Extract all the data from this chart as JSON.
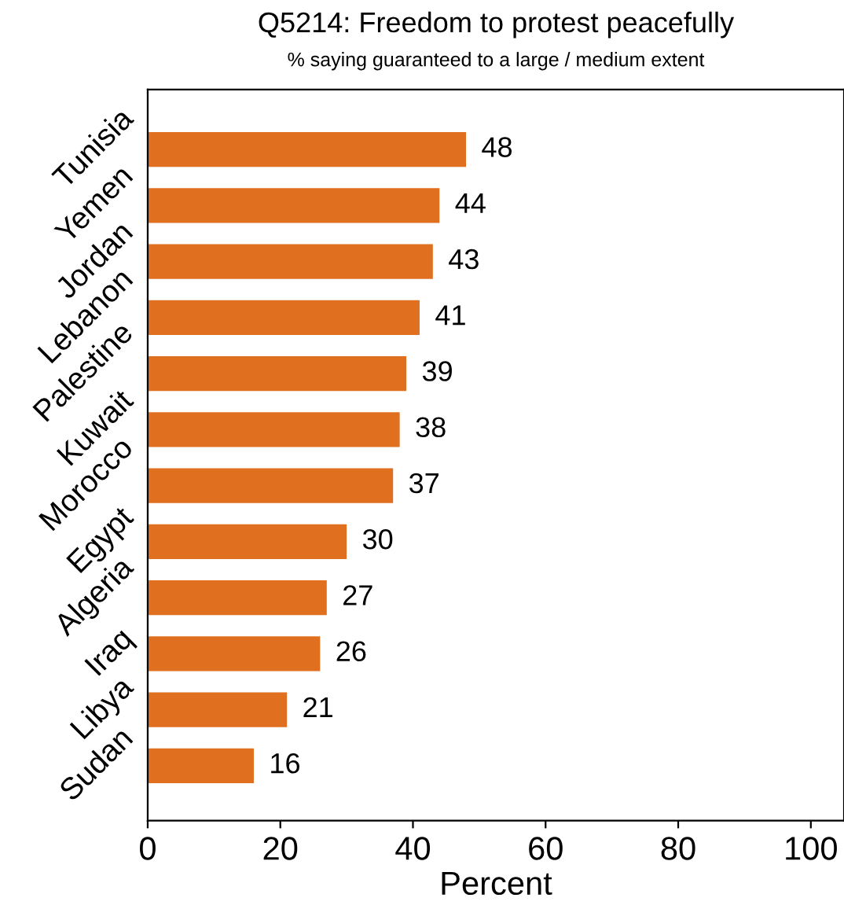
{
  "chart_data": {
    "type": "bar",
    "orientation": "horizontal",
    "title": "Q5214: Freedom to protest peacefully",
    "subtitle": "% saying guaranteed to a large / medium extent",
    "xlabel": "Percent",
    "categories": [
      "Tunisia",
      "Yemen",
      "Jordan",
      "Lebanon",
      "Palestine",
      "Kuwait",
      "Morocco",
      "Egypt",
      "Algeria",
      "Iraq",
      "Libya",
      "Sudan"
    ],
    "values": [
      48,
      44,
      43,
      41,
      39,
      38,
      37,
      30,
      27,
      26,
      21,
      16
    ],
    "color": "#e07020",
    "data_labels": true,
    "xlim": [
      0,
      105
    ],
    "xticks": [
      0,
      20,
      40,
      60,
      80,
      100
    ],
    "grid": false,
    "legend": false
  }
}
